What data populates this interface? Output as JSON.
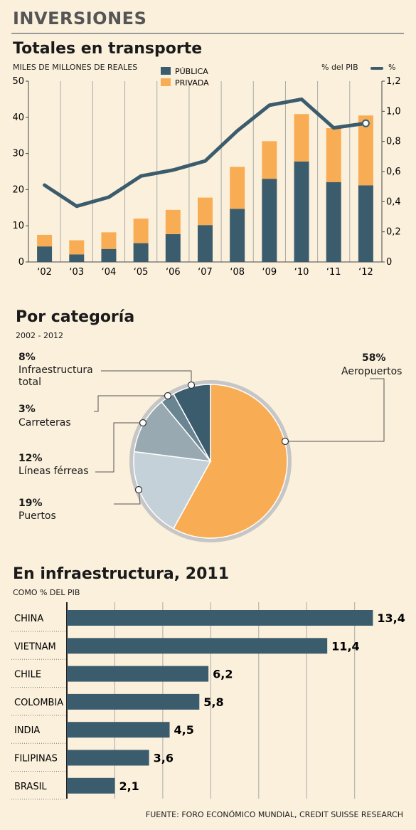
{
  "header": {
    "title": "INVERSIONES"
  },
  "chart_data": [
    {
      "type": "bar",
      "stacked": true,
      "title": "Totales en transporte",
      "ylabel": "MILES DE MILLONES DE REALES",
      "y2label": "% del PIB",
      "y2_legend": "%",
      "categories": [
        "‘02",
        "‘03",
        "‘04",
        "‘05",
        "‘06",
        "‘07",
        "‘08",
        "‘09",
        "‘10",
        "‘11",
        "‘12"
      ],
      "ylim": [
        0,
        50
      ],
      "yticks": [
        "0",
        "10",
        "20",
        "30",
        "40",
        "50"
      ],
      "y2lim": [
        0,
        1.2
      ],
      "y2ticks": [
        "0",
        "0,2",
        "0,4",
        "0,6",
        "0,8",
        "1,0",
        "1,2"
      ],
      "series": [
        {
          "name": "PÚBLICA",
          "color": "#3b5c6d",
          "values": [
            4.3,
            2.1,
            3.6,
            5.2,
            7.7,
            10.2,
            14.7,
            23.0,
            27.8,
            22.1,
            21.2
          ]
        },
        {
          "name": "PRIVADA",
          "color": "#f8ad55",
          "values": [
            3.2,
            3.9,
            4.6,
            6.8,
            6.7,
            7.6,
            11.6,
            10.4,
            13.1,
            14.9,
            19.3
          ]
        }
      ],
      "line": {
        "name": "%",
        "color": "#3b5c6d",
        "values": [
          0.51,
          0.37,
          0.43,
          0.57,
          0.61,
          0.67,
          0.87,
          1.04,
          1.08,
          0.89,
          0.92
        ]
      },
      "grid": true,
      "legend": "top"
    },
    {
      "type": "pie",
      "title": "Por categoría",
      "subtitle": "2002 - 2012",
      "slices": [
        {
          "label": "Aeropuertos",
          "pct": "58%",
          "value": 58,
          "color": "#f8ad55"
        },
        {
          "label": "Puertos",
          "pct": "19%",
          "value": 19,
          "color": "#c5d1d8"
        },
        {
          "label": "Líneas férreas",
          "pct": "12%",
          "value": 12,
          "color": "#99a9b2"
        },
        {
          "label": "Carreteras",
          "pct": "3%",
          "value": 3,
          "color": "#6a8592"
        },
        {
          "label_lines": [
            "Infraestructura",
            "total"
          ],
          "pct": "8%",
          "value": 8,
          "color": "#3b5c6d"
        }
      ]
    },
    {
      "type": "bar",
      "orientation": "horizontal",
      "title": "En infraestructura, 2011",
      "subtitle": "COMO % DEL PIB",
      "categories": [
        "CHINA",
        "VIETNAM",
        "CHILE",
        "COLOMBIA",
        "INDIA",
        "FILIPINAS",
        "BRASIL"
      ],
      "values": [
        13.4,
        11.4,
        6.2,
        5.8,
        4.5,
        3.6,
        2.1
      ],
      "value_labels": [
        "13,4",
        "11,4",
        "6,2",
        "5,8",
        "4,5",
        "3,6",
        "2,1"
      ],
      "xlim": [
        0,
        14
      ],
      "color": "#3b5c6d",
      "grid": true
    }
  ],
  "source": "FUENTE: FORO ECONÓMICO MUNDIAL, CREDIT SUISSE RESEARCH"
}
